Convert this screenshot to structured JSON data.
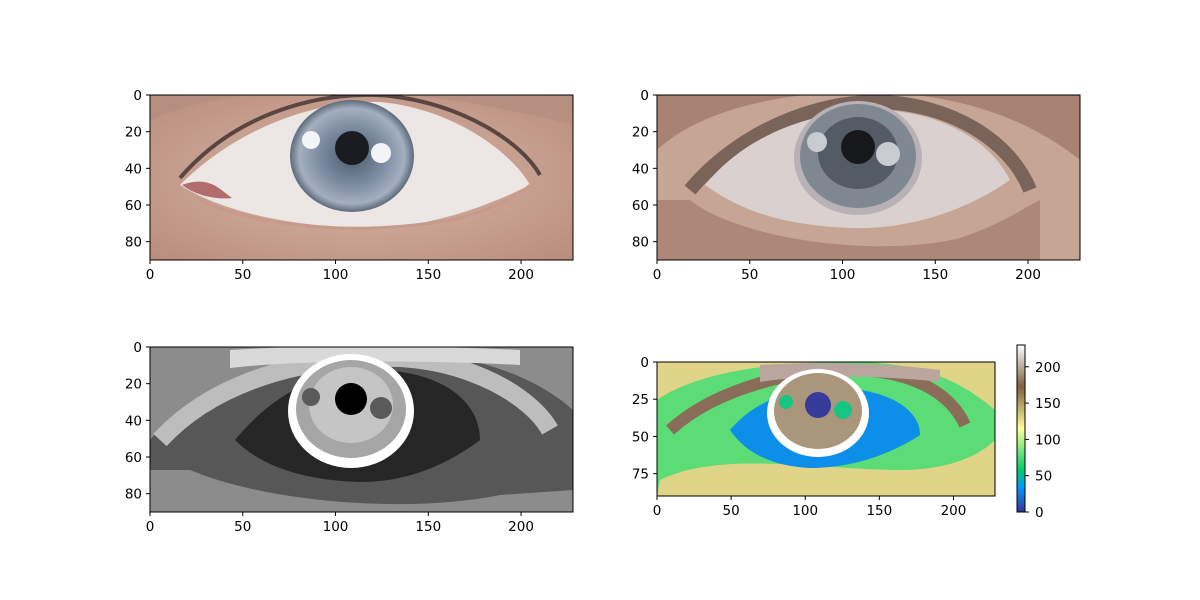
{
  "chart_data": [
    {
      "type": "image",
      "content": "eye photograph (original color)",
      "xlim": [
        0,
        228
      ],
      "ylim": [
        90,
        0
      ],
      "xticks": [
        0,
        50,
        100,
        150,
        200
      ],
      "yticks": [
        0,
        20,
        40,
        60,
        80
      ],
      "xtick_labels": [
        "0",
        "50",
        "100",
        "150",
        "200"
      ],
      "ytick_labels": [
        "0",
        "20",
        "40",
        "60",
        "80"
      ],
      "colors": {
        "skin": "#c9a494",
        "sclera": "#ece6e4",
        "iris": "#8a97a8",
        "pupil": "#1a1c22",
        "highlight": "#f2f4f6"
      }
    },
    {
      "type": "image",
      "content": "color-quantized eye (k-means colors)",
      "xlim": [
        0,
        228
      ],
      "ylim": [
        90,
        0
      ],
      "xticks": [
        0,
        50,
        100,
        150,
        200
      ],
      "yticks": [
        0,
        20,
        40,
        60,
        80
      ],
      "xtick_labels": [
        "0",
        "50",
        "100",
        "150",
        "200"
      ],
      "ytick_labels": [
        "0",
        "20",
        "40",
        "60",
        "80"
      ],
      "colors": {
        "skin": "#c7a594",
        "skin_mid": "#a88373",
        "brow": "#7a6358",
        "sclera": "#d9d0cf",
        "sclera_shadow": "#b8b1b5",
        "iris": "#7f8791",
        "iris_dark": "#555b64",
        "pupil": "#17181c",
        "highlight": "#c8cbd0"
      }
    },
    {
      "type": "image",
      "content": "grayscale label map",
      "xlim": [
        0,
        228
      ],
      "ylim": [
        90,
        0
      ],
      "xticks": [
        0,
        50,
        100,
        150,
        200
      ],
      "yticks": [
        0,
        20,
        40,
        60,
        80
      ],
      "xtick_labels": [
        "0",
        "50",
        "100",
        "150",
        "200"
      ],
      "ytick_labels": [
        "0",
        "20",
        "40",
        "60",
        "80"
      ],
      "colors": {
        "background": "#575757",
        "mid": "#8c8c8c",
        "light": "#bdbdbd",
        "lighter": "#d9d9d9",
        "dark": "#262626",
        "iris": "#a6a6a6",
        "white": "#ffffff",
        "pupil": "#000000",
        "spot": "#5a5a5a"
      }
    },
    {
      "type": "heatmap",
      "content": "label map with terrain colormap",
      "colormap": "terrain",
      "xlim": [
        0,
        228
      ],
      "ylim": [
        90,
        0
      ],
      "xticks": [
        0,
        50,
        100,
        150,
        200
      ],
      "yticks": [
        0,
        25,
        50,
        75
      ],
      "xtick_labels": [
        "0",
        "50",
        "100",
        "150",
        "200"
      ],
      "ytick_labels": [
        "0",
        "25",
        "50",
        "75"
      ],
      "colorbar": {
        "range": [
          0,
          230
        ],
        "ticks": [
          0,
          50,
          100,
          150,
          200
        ],
        "tick_labels": [
          "0",
          "50",
          "100",
          "150",
          "200"
        ],
        "stops": [
          "#333399",
          "#0099ff",
          "#00cc66",
          "#ffff99",
          "#806040",
          "#ffffff"
        ]
      },
      "colors": {
        "background": "#5bdc76",
        "yellow": "#e0d488",
        "brown": "#8a6d58",
        "blue": "#0d8ee8",
        "tan": "#a9967b",
        "white": "#ffffff",
        "pupil": "#353a9b",
        "teal": "#18c482",
        "pink": "#b9a79f"
      }
    }
  ]
}
